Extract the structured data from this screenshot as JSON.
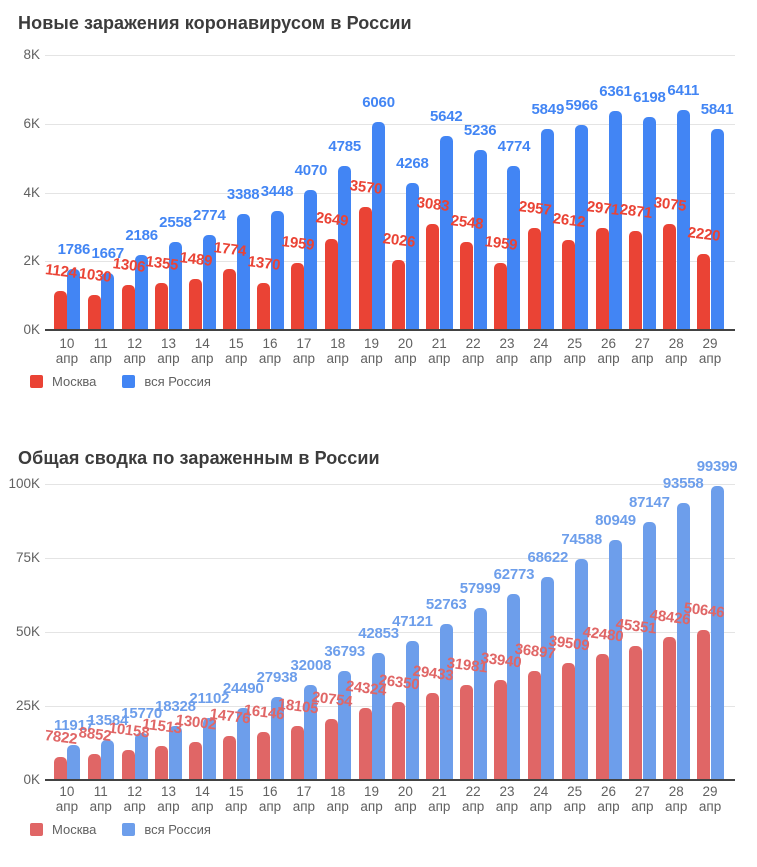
{
  "chart_data": [
    {
      "type": "bar",
      "title": "Новые заражения коронавирусом в России",
      "xlabel": "",
      "ylabel": "",
      "ylim": [
        0,
        8000
      ],
      "grid": true,
      "legend_position": "bottom",
      "y_ticks": [
        "0K",
        "2K",
        "4K",
        "6K",
        "8K"
      ],
      "ymax": 8000,
      "categories": [
        "10",
        "11",
        "12",
        "13",
        "14",
        "15",
        "16",
        "17",
        "18",
        "19",
        "20",
        "21",
        "22",
        "23",
        "24",
        "25",
        "26",
        "27",
        "28",
        "29"
      ],
      "category_month": "апр",
      "series": [
        {
          "name": "Москва",
          "color": "#EA4335",
          "values": [
            1124,
            1030,
            1306,
            1355,
            1489,
            1774,
            1370,
            1959,
            2649,
            3570,
            2026,
            3083,
            2548,
            1959,
            2957,
            2612,
            2971,
            2871,
            3075,
            2220
          ]
        },
        {
          "name": "вся Россия",
          "color": "#4285F4",
          "values": [
            1786,
            1667,
            2186,
            2558,
            2774,
            3388,
            3448,
            4070,
            4785,
            6060,
            4268,
            5642,
            5236,
            4774,
            5849,
            5966,
            6361,
            6198,
            6411,
            5841
          ]
        }
      ]
    },
    {
      "type": "bar",
      "title": "Общая сводка по зараженным в России",
      "xlabel": "",
      "ylabel": "",
      "ylim": [
        0,
        100000
      ],
      "grid": true,
      "legend_position": "bottom",
      "y_ticks": [
        "0K",
        "25K",
        "50K",
        "75K",
        "100K"
      ],
      "ymax": 100000,
      "categories": [
        "10",
        "11",
        "12",
        "13",
        "14",
        "15",
        "16",
        "17",
        "18",
        "19",
        "20",
        "21",
        "22",
        "23",
        "24",
        "25",
        "26",
        "27",
        "28",
        "29"
      ],
      "category_month": "апр",
      "series": [
        {
          "name": "Москва",
          "color": "#E06666",
          "values": [
            7822,
            8852,
            10158,
            11513,
            13002,
            14776,
            16146,
            18105,
            20754,
            24324,
            26350,
            29433,
            31981,
            33940,
            36897,
            39509,
            42480,
            45351,
            48426,
            50646
          ]
        },
        {
          "name": "вся Россия",
          "color": "#6D9EEB",
          "values": [
            11917,
            13584,
            15770,
            18328,
            21102,
            24490,
            27938,
            32008,
            36793,
            42853,
            47121,
            52763,
            57999,
            62773,
            68622,
            74588,
            80949,
            87147,
            93558,
            99399
          ]
        }
      ]
    }
  ]
}
